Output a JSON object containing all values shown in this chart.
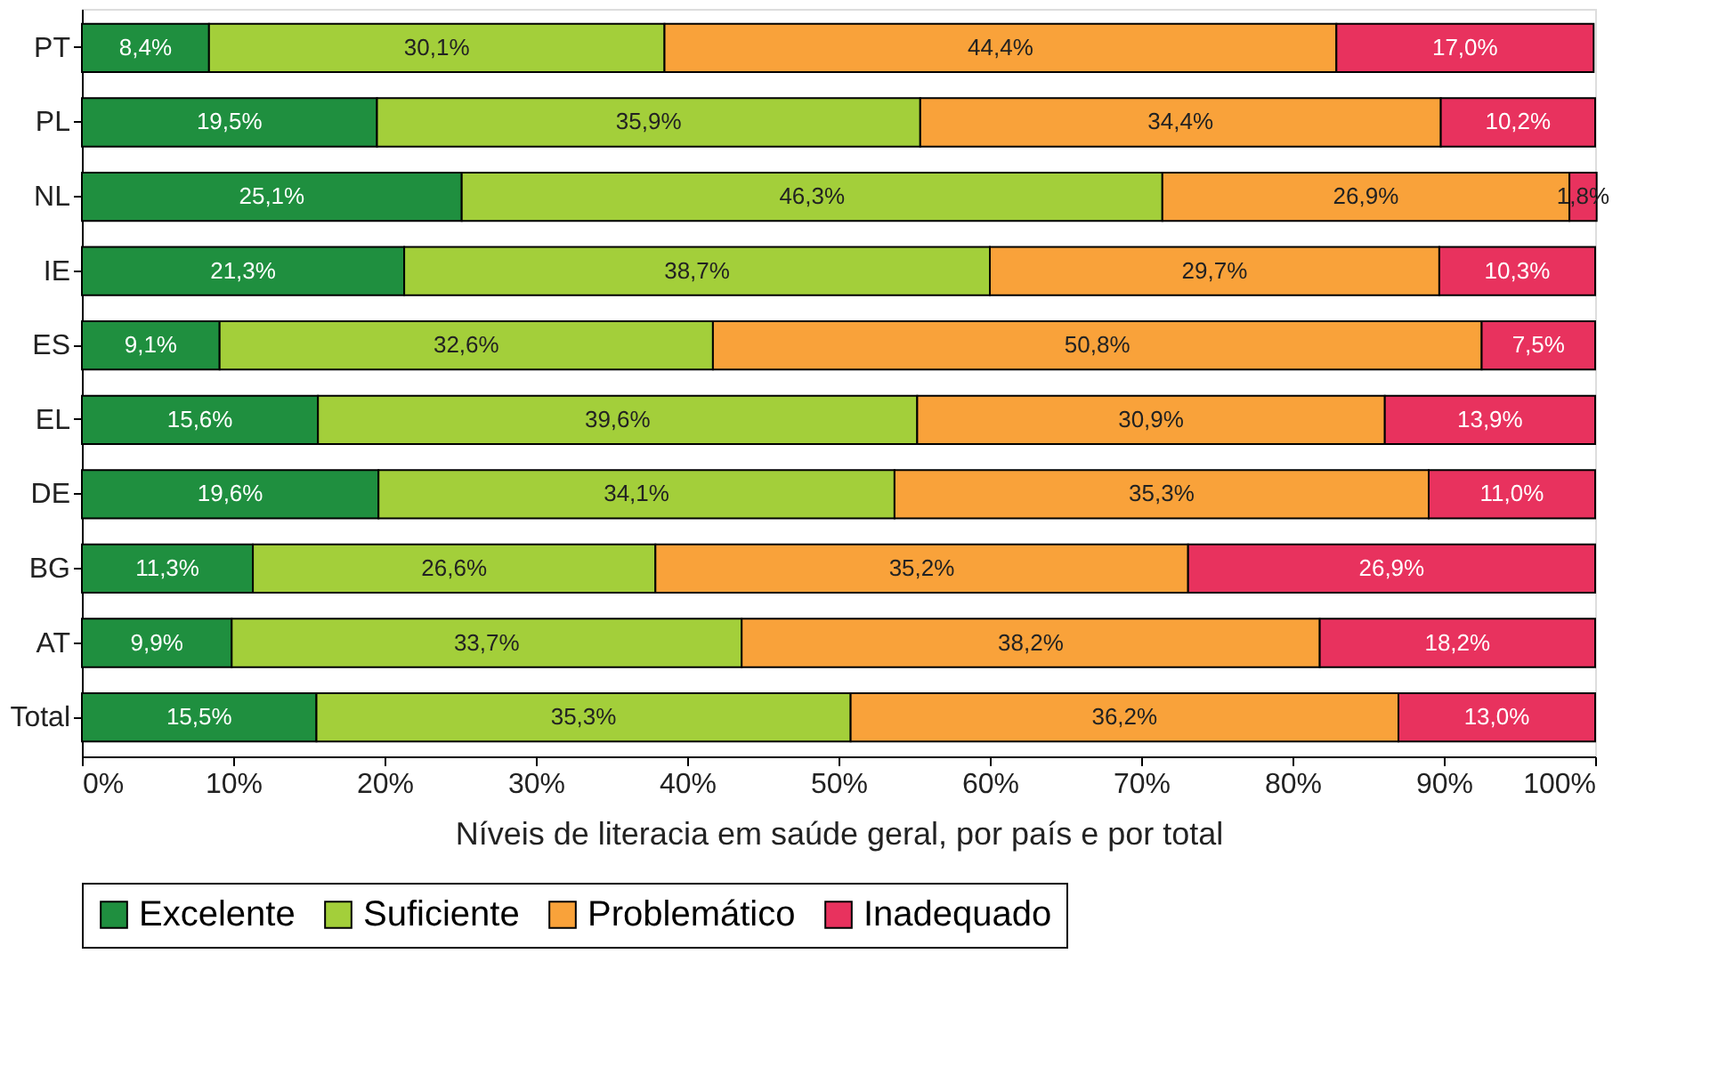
{
  "chart_data": {
    "type": "bar",
    "orientation": "horizontal",
    "stacked": true,
    "xlabel": "Níveis de literacia em saúde geral, por país e por total",
    "categories": [
      "PT",
      "PL",
      "NL",
      "IE",
      "ES",
      "EL",
      "DE",
      "BG",
      "AT",
      "Total"
    ],
    "series": [
      {
        "name": "Excelente",
        "color": "#1f8f3f",
        "values": [
          8.4,
          19.5,
          25.1,
          21.3,
          9.1,
          15.6,
          19.6,
          11.3,
          9.9,
          15.5
        ],
        "value_labels": [
          "8,4%",
          "19,5%",
          "25,1%",
          "21,3%",
          "9,1%",
          "15,6%",
          "19,6%",
          "11,3%",
          "9,9%",
          "15,5%"
        ]
      },
      {
        "name": "Suficiente",
        "color": "#a3cf3a",
        "values": [
          30.1,
          35.9,
          46.3,
          38.7,
          32.6,
          39.6,
          34.1,
          26.6,
          33.7,
          35.3
        ],
        "value_labels": [
          "30,1%",
          "35,9%",
          "46,3%",
          "38,7%",
          "32,6%",
          "39,6%",
          "34,1%",
          "26,6%",
          "33,7%",
          "35,3%"
        ]
      },
      {
        "name": "Problemático",
        "color": "#f9a23a",
        "values": [
          44.4,
          34.4,
          26.9,
          29.7,
          50.8,
          30.9,
          35.3,
          35.2,
          38.2,
          36.2
        ],
        "value_labels": [
          "44,4%",
          "34,4%",
          "26,9%",
          "29,7%",
          "50,8%",
          "30,9%",
          "35,3%",
          "35,2%",
          "38,2%",
          "36,2%"
        ]
      },
      {
        "name": "Inadequado",
        "color": "#e8325e",
        "values": [
          17.0,
          10.2,
          1.8,
          10.3,
          7.5,
          13.9,
          11.0,
          26.9,
          18.2,
          13.0
        ],
        "value_labels": [
          "17,0%",
          "10,2%",
          "1,8%",
          "10,3%",
          "7,5%",
          "13,9%",
          "11,0%",
          "26,9%",
          "18,2%",
          "13,0%"
        ]
      }
    ],
    "xlim": [
      0,
      100
    ],
    "xticks": [
      {
        "value": 0,
        "label": "0%"
      },
      {
        "value": 10,
        "label": "10%"
      },
      {
        "value": 20,
        "label": "20%"
      },
      {
        "value": 30,
        "label": "30%"
      },
      {
        "value": 40,
        "label": "40%"
      },
      {
        "value": 50,
        "label": "50%"
      },
      {
        "value": 60,
        "label": "60%"
      },
      {
        "value": 70,
        "label": "70%"
      },
      {
        "value": 80,
        "label": "80%"
      },
      {
        "value": 90,
        "label": "90%"
      },
      {
        "value": 100,
        "label": "100%"
      }
    ],
    "grid": false,
    "legend": "bottom"
  }
}
